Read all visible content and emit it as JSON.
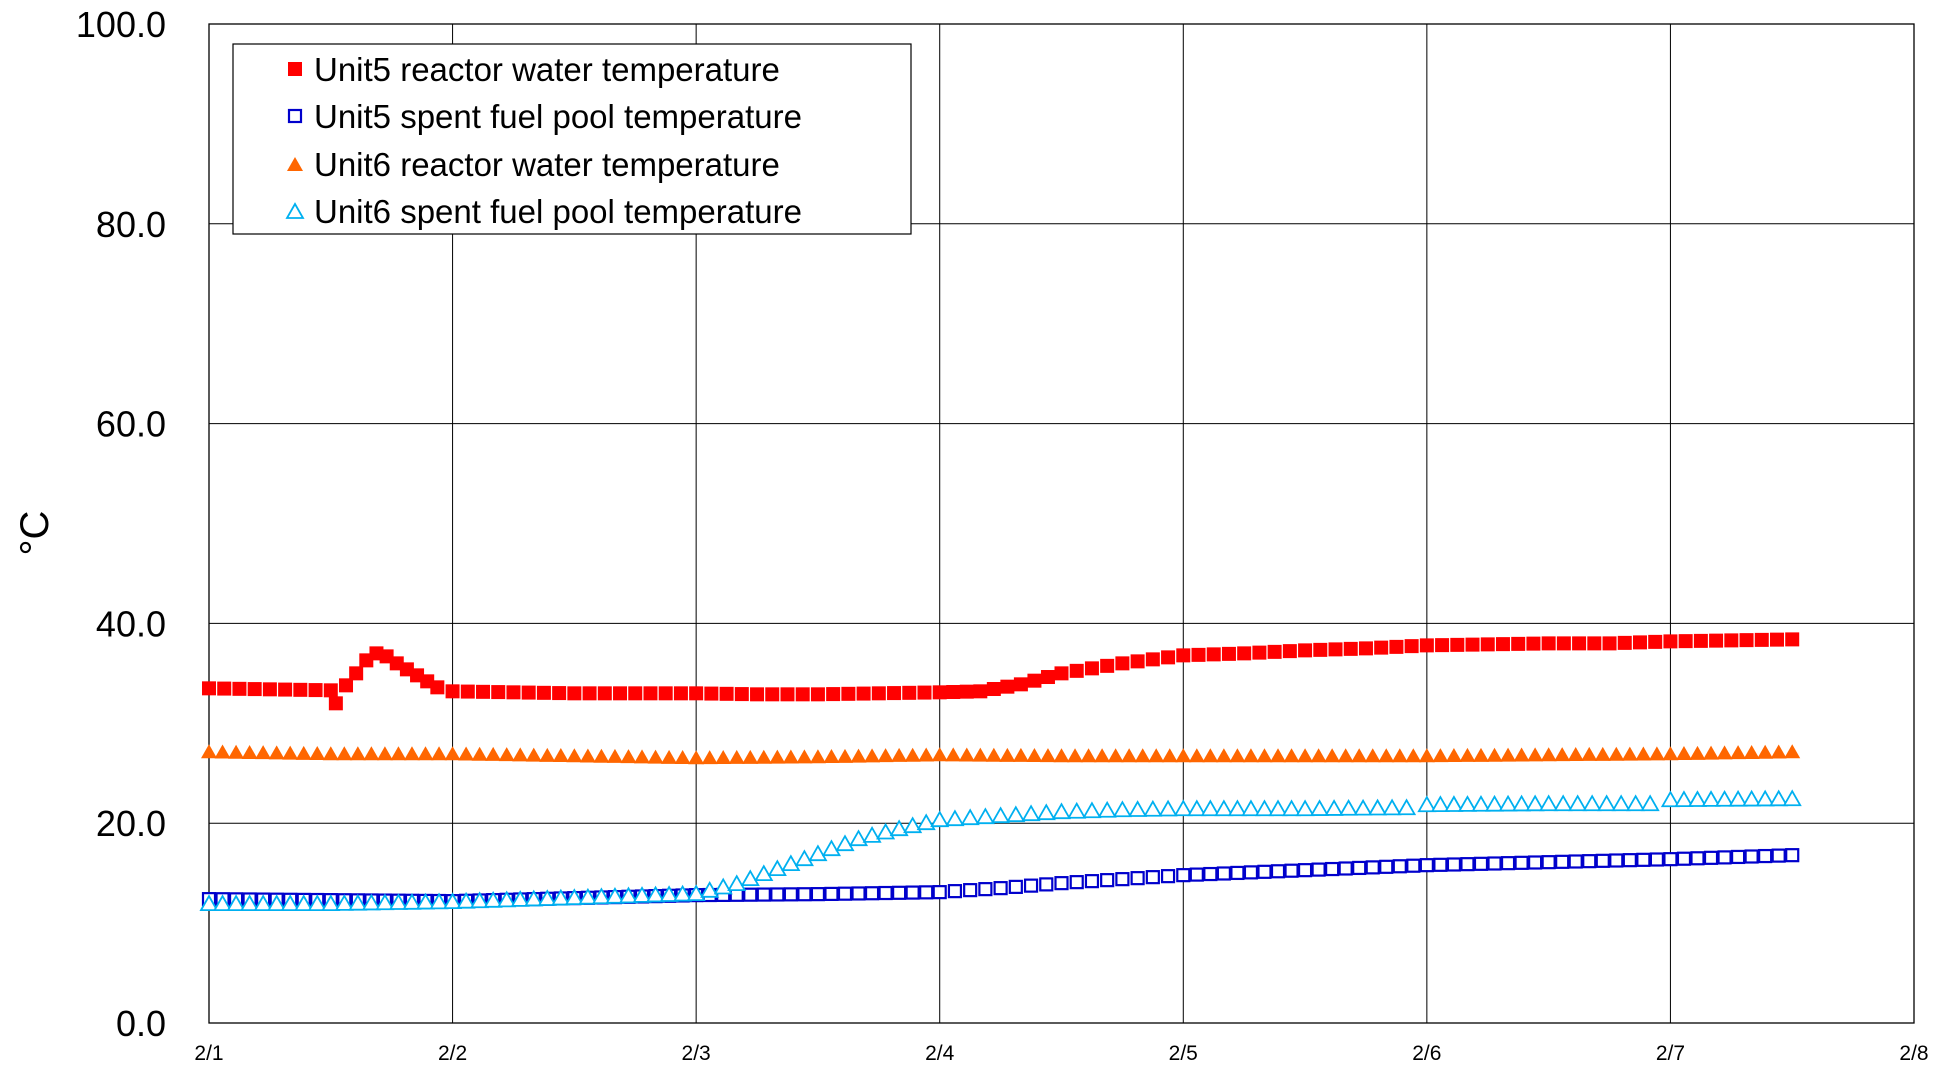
{
  "chart_data": {
    "type": "scatter",
    "title": "",
    "xlabel": "",
    "ylabel": "°C",
    "ylim": [
      0,
      100
    ],
    "xlim": [
      "2/1",
      "2/8"
    ],
    "x_ticks": [
      "2/1",
      "2/2",
      "2/3",
      "2/4",
      "2/5",
      "2/6",
      "2/7",
      "2/8"
    ],
    "y_ticks": [
      "0.0",
      "20.0",
      "40.0",
      "60.0",
      "80.0",
      "100.0"
    ],
    "grid": true,
    "legend_position": "top-left",
    "series": [
      {
        "name": "Unit5 reactor water temperature",
        "marker": "filled-square",
        "color": "#ff0000",
        "points": [
          [
            "2/1 00:00",
            33.5
          ],
          [
            "2/1 06:00",
            33.4
          ],
          [
            "2/1 12:00",
            33.3
          ],
          [
            "2/1 12:30",
            32.0
          ],
          [
            "2/1 13:30",
            33.8
          ],
          [
            "2/1 14:30",
            35.0
          ],
          [
            "2/1 15:30",
            36.3
          ],
          [
            "2/1 16:30",
            37.0
          ],
          [
            "2/1 17:30",
            36.7
          ],
          [
            "2/1 18:30",
            36.0
          ],
          [
            "2/1 19:30",
            35.4
          ],
          [
            "2/1 20:30",
            34.8
          ],
          [
            "2/1 21:30",
            34.2
          ],
          [
            "2/1 22:30",
            33.6
          ],
          [
            "2/2 00:00",
            33.2
          ],
          [
            "2/2 06:00",
            33.1
          ],
          [
            "2/2 12:00",
            33.0
          ],
          [
            "2/2 18:00",
            33.0
          ],
          [
            "2/3 00:00",
            33.0
          ],
          [
            "2/3 06:00",
            32.9
          ],
          [
            "2/3 12:00",
            32.9
          ],
          [
            "2/3 18:00",
            33.0
          ],
          [
            "2/4 00:00",
            33.1
          ],
          [
            "2/4 04:00",
            33.2
          ],
          [
            "2/4 08:00",
            33.9
          ],
          [
            "2/4 12:00",
            35.0
          ],
          [
            "2/4 18:00",
            36.0
          ],
          [
            "2/5 00:00",
            36.8
          ],
          [
            "2/5 06:00",
            37.0
          ],
          [
            "2/5 12:00",
            37.3
          ],
          [
            "2/5 18:00",
            37.5
          ],
          [
            "2/6 00:00",
            37.8
          ],
          [
            "2/6 06:00",
            37.9
          ],
          [
            "2/6 12:00",
            38.0
          ],
          [
            "2/6 18:00",
            38.0
          ],
          [
            "2/7 00:00",
            38.2
          ],
          [
            "2/7 06:00",
            38.3
          ],
          [
            "2/7 12:00",
            38.4
          ]
        ]
      },
      {
        "name": "Unit5 spent fuel pool temperature",
        "marker": "open-square",
        "color": "#0000cc",
        "points": [
          [
            "2/1 00:00",
            12.4
          ],
          [
            "2/1 12:00",
            12.3
          ],
          [
            "2/2 00:00",
            12.2
          ],
          [
            "2/2 12:00",
            12.5
          ],
          [
            "2/3 00:00",
            12.8
          ],
          [
            "2/3 12:00",
            12.9
          ],
          [
            "2/4 00:00",
            13.1
          ],
          [
            "2/4 06:00",
            13.5
          ],
          [
            "2/4 12:00",
            14.0
          ],
          [
            "2/4 18:00",
            14.4
          ],
          [
            "2/5 00:00",
            14.8
          ],
          [
            "2/5 12:00",
            15.3
          ],
          [
            "2/6 00:00",
            15.8
          ],
          [
            "2/6 12:00",
            16.1
          ],
          [
            "2/7 00:00",
            16.4
          ],
          [
            "2/7 12:00",
            16.8
          ]
        ]
      },
      {
        "name": "Unit6 reactor water temperature",
        "marker": "filled-triangle",
        "color": "#ff6600",
        "points": [
          [
            "2/1 00:00",
            27.2
          ],
          [
            "2/1 12:00",
            27.0
          ],
          [
            "2/2 00:00",
            27.0
          ],
          [
            "2/2 12:00",
            26.8
          ],
          [
            "2/3 00:00",
            26.6
          ],
          [
            "2/3 12:00",
            26.7
          ],
          [
            "2/4 00:00",
            26.9
          ],
          [
            "2/4 12:00",
            26.8
          ],
          [
            "2/5 00:00",
            26.8
          ],
          [
            "2/5 12:00",
            26.8
          ],
          [
            "2/6 00:00",
            26.8
          ],
          [
            "2/6 12:00",
            26.9
          ],
          [
            "2/7 00:00",
            27.0
          ],
          [
            "2/7 12:00",
            27.2
          ]
        ]
      },
      {
        "name": "Unit6 spent fuel pool temperature",
        "marker": "open-triangle",
        "color": "#00b0f0",
        "points": [
          [
            "2/1 00:00",
            12.0
          ],
          [
            "2/1 12:00",
            12.0
          ],
          [
            "2/2 00:00",
            12.2
          ],
          [
            "2/2 12:00",
            12.6
          ],
          [
            "2/3 00:00",
            13.0
          ],
          [
            "2/3 04:00",
            14.0
          ],
          [
            "2/3 08:00",
            15.5
          ],
          [
            "2/3 12:00",
            17.0
          ],
          [
            "2/3 16:00",
            18.5
          ],
          [
            "2/3 20:00",
            19.5
          ],
          [
            "2/4 00:00",
            20.4
          ],
          [
            "2/4 06:00",
            20.8
          ],
          [
            "2/4 12:00",
            21.2
          ],
          [
            "2/4 18:00",
            21.4
          ],
          [
            "2/5 00:00",
            21.5
          ],
          [
            "2/5 12:00",
            21.5
          ],
          [
            "2/5 22:00",
            21.6
          ],
          [
            "2/6 00:00",
            21.9
          ],
          [
            "2/6 12:00",
            22.0
          ],
          [
            "2/6 22:00",
            22.0
          ],
          [
            "2/7 00:00",
            22.4
          ],
          [
            "2/7 12:00",
            22.5
          ]
        ]
      }
    ]
  }
}
